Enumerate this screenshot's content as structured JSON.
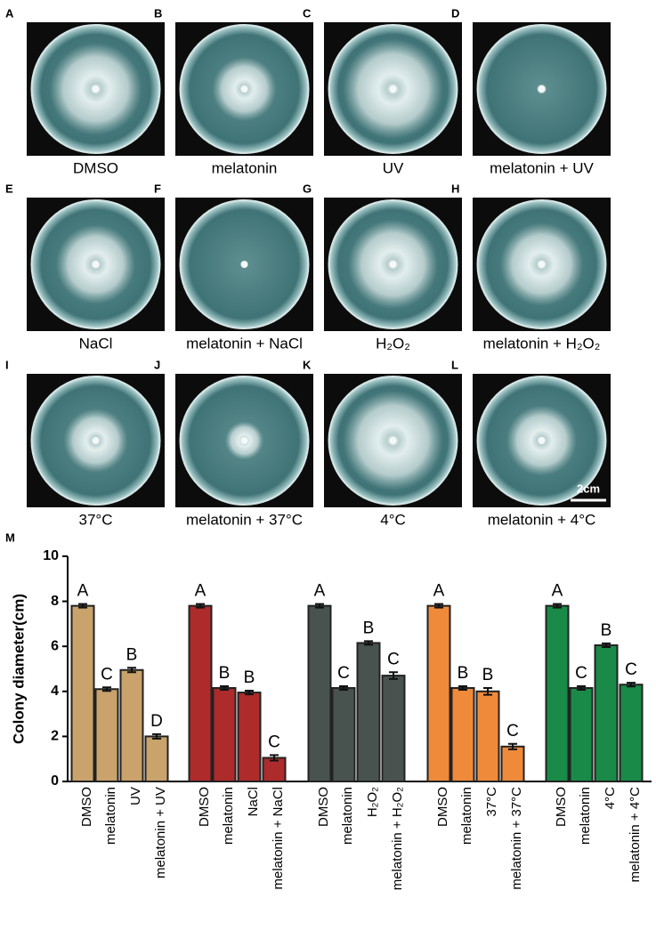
{
  "panels": [
    {
      "letter": "A",
      "label": "DMSO"
    },
    {
      "letter": "B",
      "label": "melatonin"
    },
    {
      "letter": "C",
      "label": "UV"
    },
    {
      "letter": "D",
      "label": "melatonin + UV"
    },
    {
      "letter": "E",
      "label": "NaCl"
    },
    {
      "letter": "F",
      "label": "melatonin + NaCl"
    },
    {
      "letter": "G",
      "label": "H₂O₂"
    },
    {
      "letter": "H",
      "label": "melatonin + H₂O₂"
    },
    {
      "letter": "I",
      "label": "37°C"
    },
    {
      "letter": "J",
      "label": "melatonin + 37°C"
    },
    {
      "letter": "K",
      "label": "4°C"
    },
    {
      "letter": "L",
      "label": "melatonin + 4°C"
    }
  ],
  "scale_bar": "2cm",
  "chart_data": {
    "type": "bar",
    "panel_letter": "M",
    "ylabel": "Colony diameter(cm)",
    "ylim": [
      0,
      10
    ],
    "yticks": [
      0,
      2,
      4,
      6,
      8,
      10
    ],
    "groups": [
      {
        "color": "#c9a36b",
        "categories": [
          "DMSO",
          "melatonin",
          "UV",
          "melatonin + UV"
        ],
        "values": [
          7.8,
          4.1,
          4.95,
          2.0
        ],
        "errors": [
          0.08,
          0.08,
          0.1,
          0.1
        ],
        "letters": [
          "A",
          "C",
          "B",
          "D"
        ]
      },
      {
        "color": "#ae2b2b",
        "categories": [
          "DMSO",
          "melatonin",
          "NaCl",
          "melatonin + NaCl"
        ],
        "values": [
          7.8,
          4.15,
          3.95,
          1.05
        ],
        "errors": [
          0.08,
          0.08,
          0.08,
          0.12
        ],
        "letters": [
          "A",
          "B",
          "B",
          "C"
        ]
      },
      {
        "color": "#48534f",
        "categories": [
          "DMSO",
          "melatonin",
          "H₂O₂",
          "melatonin + H₂O₂"
        ],
        "values": [
          7.8,
          4.15,
          6.15,
          4.7
        ],
        "errors": [
          0.08,
          0.08,
          0.08,
          0.15
        ],
        "letters": [
          "A",
          "C",
          "B",
          "C"
        ]
      },
      {
        "color": "#ef8a3a",
        "categories": [
          "DMSO",
          "melatonin",
          "37°C",
          "melatonin + 37°C"
        ],
        "values": [
          7.8,
          4.15,
          4.0,
          1.55
        ],
        "errors": [
          0.08,
          0.08,
          0.15,
          0.12
        ],
        "letters": [
          "A",
          "B",
          "B",
          "C"
        ]
      },
      {
        "color": "#198a47",
        "categories": [
          "DMSO",
          "melatonin",
          "4°C",
          "melatonin + 4°C"
        ],
        "values": [
          7.8,
          4.15,
          6.05,
          4.3
        ],
        "errors": [
          0.08,
          0.08,
          0.08,
          0.08
        ],
        "letters": [
          "A",
          "C",
          "B",
          "C"
        ]
      }
    ]
  }
}
